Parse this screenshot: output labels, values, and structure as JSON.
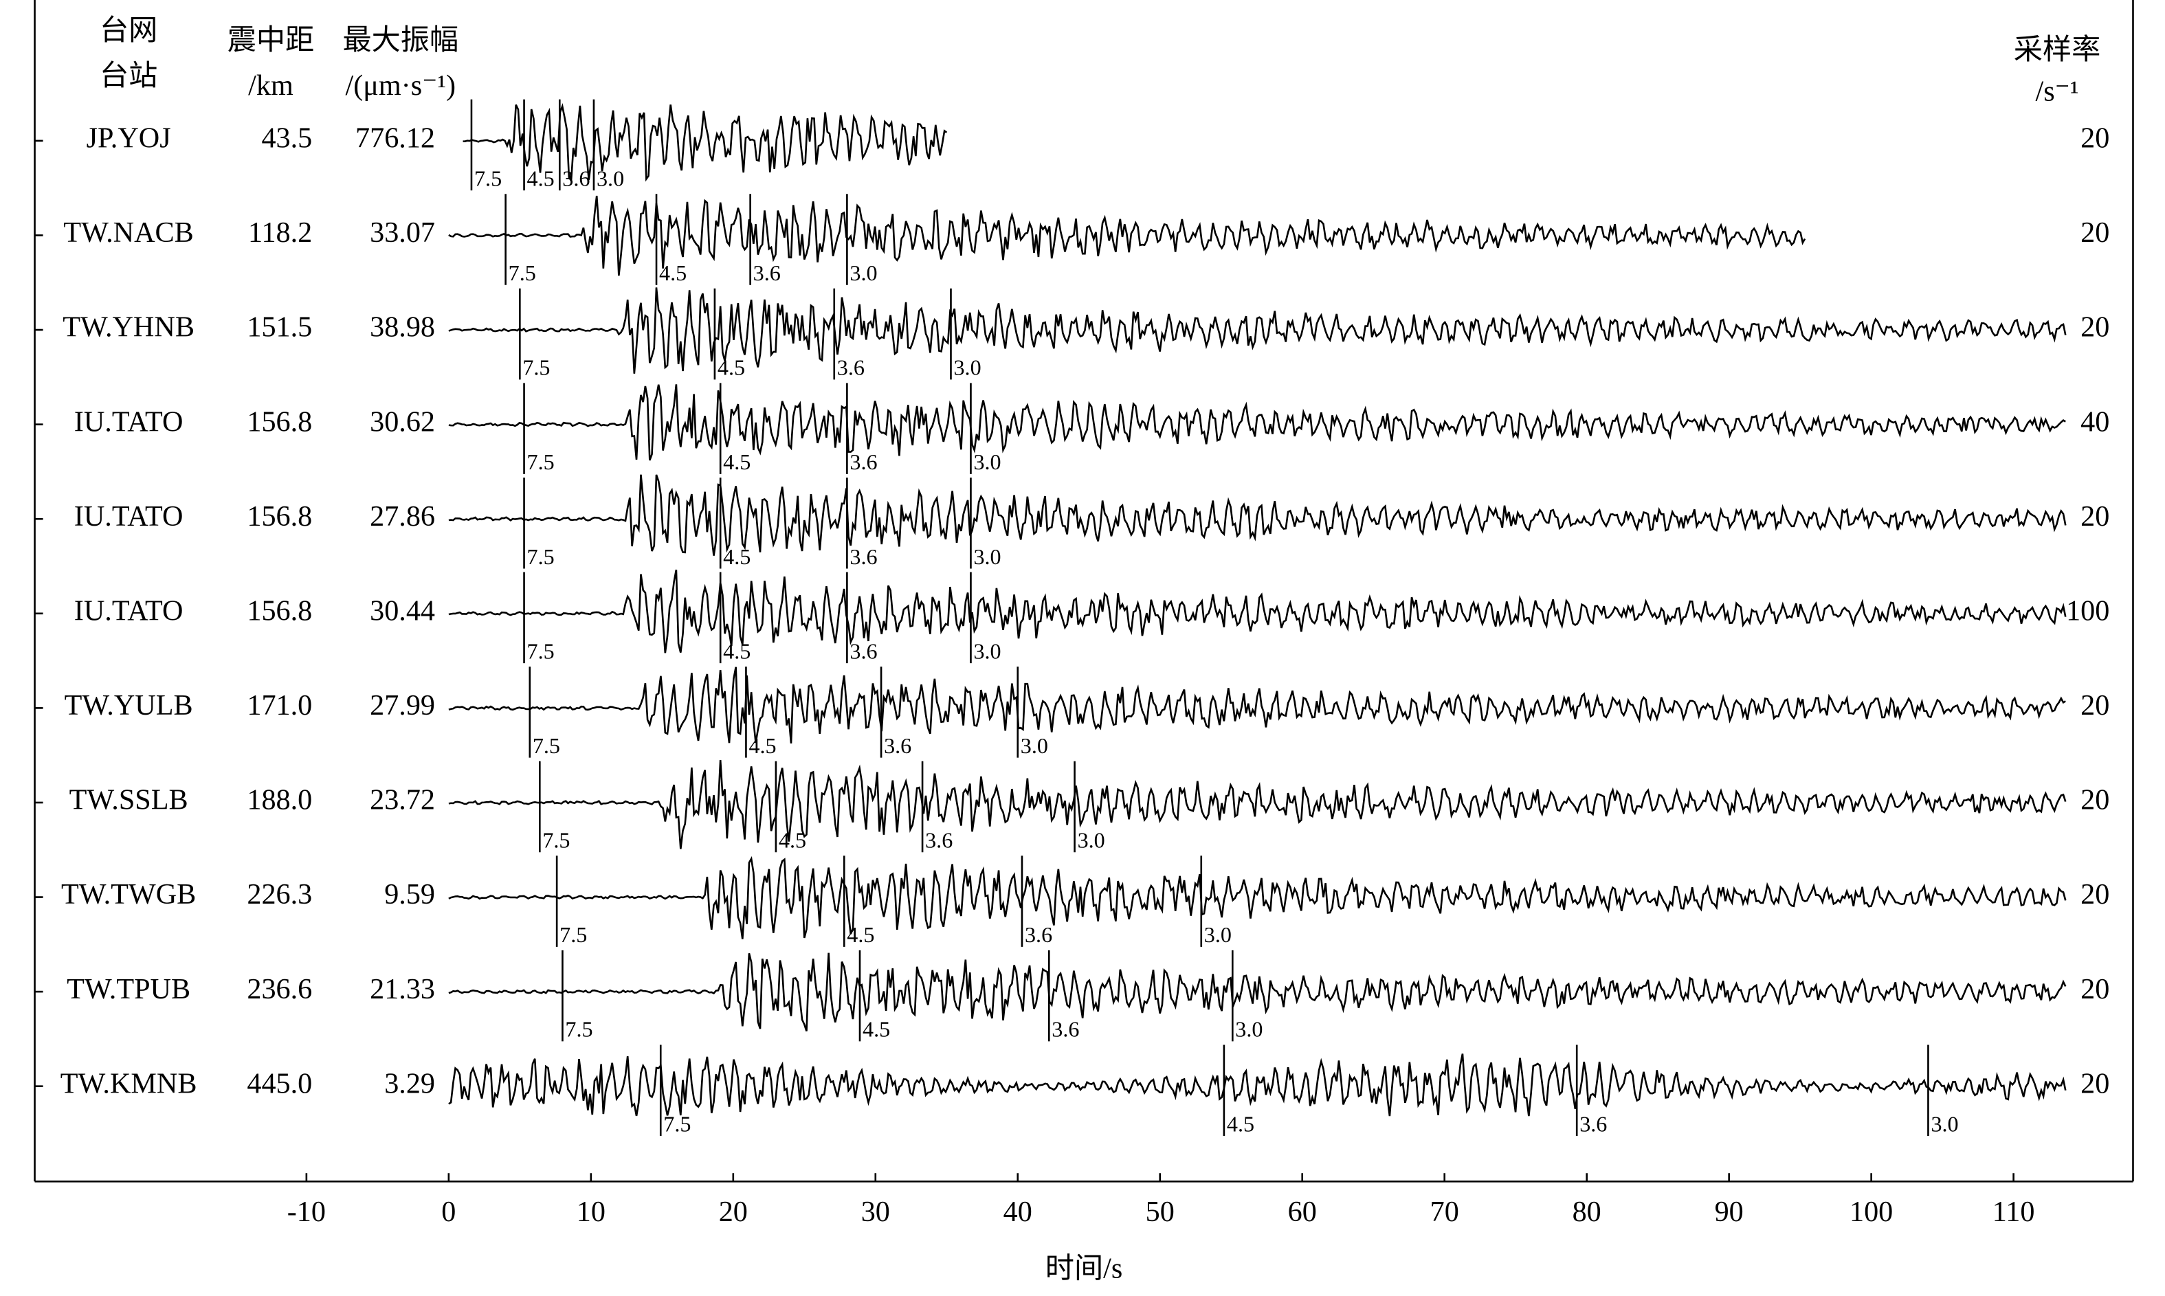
{
  "chart_data": {
    "type": "seismogram",
    "headers": {
      "network": [
        "台网",
        "台站"
      ],
      "distance": [
        "震中距",
        "/km"
      ],
      "amplitude": [
        "最大振幅",
        "/(μm·s⁻¹)"
      ],
      "rate": [
        "采样率",
        "/s⁻¹"
      ]
    },
    "xlabel": "时间/s",
    "xlim": [
      -29.1,
      118.4
    ],
    "xticks": [
      -10,
      0,
      10,
      20,
      30,
      40,
      50,
      60,
      70,
      80,
      90,
      100,
      110
    ],
    "stations": [
      {
        "name": "JP.YOJ",
        "distance": "43.5",
        "amplitude": "776.12",
        "rate": "20",
        "x_start": 1.0,
        "x_end": 35.1,
        "markers": [
          {
            "label": "7.5",
            "t": 1.6
          },
          {
            "label": "4.5",
            "t": 5.3
          },
          {
            "label": "3.6",
            "t": 7.8
          },
          {
            "label": "3.0",
            "t": 10.2
          }
        ]
      },
      {
        "name": "TW.NACB",
        "distance": "118.2",
        "amplitude": "33.07",
        "rate": "20",
        "x_start": 0,
        "x_end": 95.4,
        "markers": [
          {
            "label": "7.5",
            "t": 4.0
          },
          {
            "label": "4.5",
            "t": 14.6
          },
          {
            "label": "3.6",
            "t": 21.2
          },
          {
            "label": "3.0",
            "t": 28.0
          }
        ]
      },
      {
        "name": "TW.YHNB",
        "distance": "151.5",
        "amplitude": "38.98",
        "rate": "20",
        "x_start": 0,
        "x_end": 113.8,
        "markers": [
          {
            "label": "7.5",
            "t": 5.0
          },
          {
            "label": "4.5",
            "t": 18.7
          },
          {
            "label": "3.6",
            "t": 27.1
          },
          {
            "label": "3.0",
            "t": 35.3
          }
        ]
      },
      {
        "name": "IU.TATO",
        "distance": "156.8",
        "amplitude": "30.62",
        "rate": "40",
        "x_start": 0,
        "x_end": 113.8,
        "markers": [
          {
            "label": "7.5",
            "t": 5.3
          },
          {
            "label": "4.5",
            "t": 19.1
          },
          {
            "label": "3.6",
            "t": 28.0
          },
          {
            "label": "3.0",
            "t": 36.7
          }
        ]
      },
      {
        "name": "IU.TATO",
        "distance": "156.8",
        "amplitude": "27.86",
        "rate": "20",
        "x_start": 0,
        "x_end": 113.8,
        "markers": [
          {
            "label": "7.5",
            "t": 5.3
          },
          {
            "label": "4.5",
            "t": 19.1
          },
          {
            "label": "3.6",
            "t": 28.0
          },
          {
            "label": "3.0",
            "t": 36.7
          }
        ]
      },
      {
        "name": "IU.TATO",
        "distance": "156.8",
        "amplitude": "30.44",
        "rate": "100",
        "x_start": 0,
        "x_end": 113.8,
        "markers": [
          {
            "label": "7.5",
            "t": 5.3
          },
          {
            "label": "4.5",
            "t": 19.1
          },
          {
            "label": "3.6",
            "t": 28.0
          },
          {
            "label": "3.0",
            "t": 36.7
          }
        ]
      },
      {
        "name": "TW.YULB",
        "distance": "171.0",
        "amplitude": "27.99",
        "rate": "20",
        "x_start": 0,
        "x_end": 113.8,
        "markers": [
          {
            "label": "7.5",
            "t": 5.7
          },
          {
            "label": "4.5",
            "t": 20.9
          },
          {
            "label": "3.6",
            "t": 30.4
          },
          {
            "label": "3.0",
            "t": 40.0
          }
        ]
      },
      {
        "name": "TW.SSLB",
        "distance": "188.0",
        "amplitude": "23.72",
        "rate": "20",
        "x_start": 0,
        "x_end": 113.8,
        "markers": [
          {
            "label": "7.5",
            "t": 6.4
          },
          {
            "label": "4.5",
            "t": 23.0
          },
          {
            "label": "3.6",
            "t": 33.3
          },
          {
            "label": "3.0",
            "t": 44.0
          }
        ]
      },
      {
        "name": "TW.TWGB",
        "distance": "226.3",
        "amplitude": "9.59",
        "rate": "20",
        "x_start": 0,
        "x_end": 113.8,
        "markers": [
          {
            "label": "7.5",
            "t": 7.6
          },
          {
            "label": "4.5",
            "t": 27.8
          },
          {
            "label": "3.6",
            "t": 40.3
          },
          {
            "label": "3.0",
            "t": 52.9
          }
        ]
      },
      {
        "name": "TW.TPUB",
        "distance": "236.6",
        "amplitude": "21.33",
        "rate": "20",
        "x_start": 0,
        "x_end": 113.8,
        "markers": [
          {
            "label": "7.5",
            "t": 8.0
          },
          {
            "label": "4.5",
            "t": 28.9
          },
          {
            "label": "3.6",
            "t": 42.2
          },
          {
            "label": "3.0",
            "t": 55.1
          }
        ]
      },
      {
        "name": "TW.KMNB",
        "distance": "445.0",
        "amplitude": "3.29",
        "rate": "20",
        "x_start": 0,
        "x_end": 113.8,
        "markers": [
          {
            "label": "7.5",
            "t": 14.9
          },
          {
            "label": "4.5",
            "t": 54.5
          },
          {
            "label": "3.6",
            "t": 79.3
          },
          {
            "label": "3.0",
            "t": 104.0
          }
        ]
      }
    ]
  }
}
